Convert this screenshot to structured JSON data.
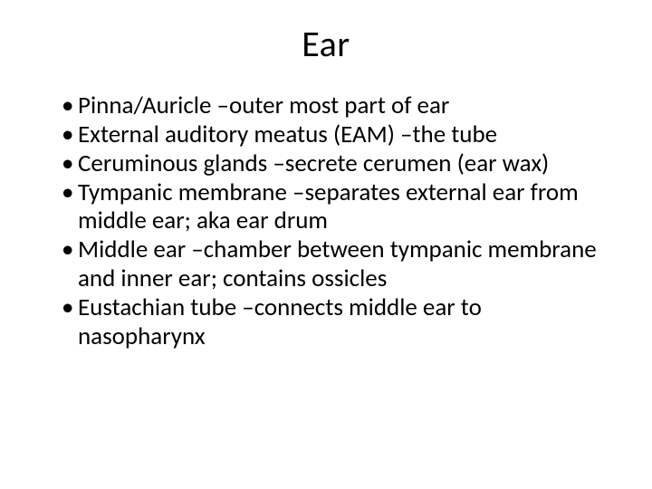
{
  "slide": {
    "title": "Ear",
    "title_fontsize": 40,
    "body_fontsize": 27,
    "background_color": "#ffffff",
    "text_color": "#000000",
    "font_family": "Calibri",
    "bullets": [
      "Pinna/Auricle –outer most part of ear",
      "External auditory meatus (EAM) –the tube",
      "Ceruminous glands –secrete cerumen (ear wax)",
      "Tympanic membrane –separates external ear from middle ear; aka ear drum",
      "Middle ear –chamber between tympanic membrane and inner ear; contains ossicles",
      "Eustachian tube –connects middle ear to nasopharynx"
    ]
  }
}
